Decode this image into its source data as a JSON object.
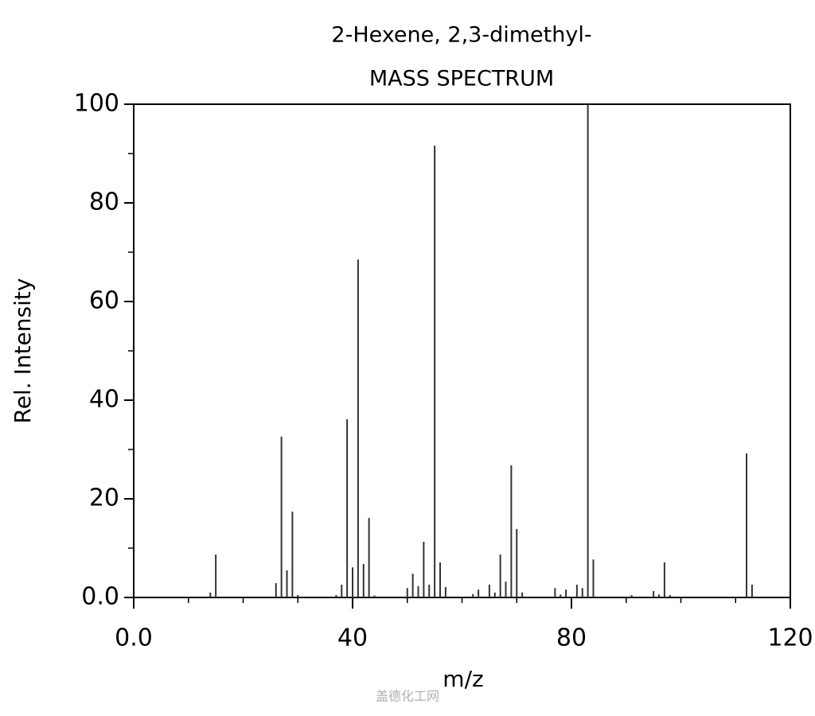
{
  "chart_data": {
    "type": "stem",
    "title": "2-Hexene, 2,3-dimethyl-",
    "subtitle": "MASS SPECTRUM",
    "x_label": "m/z",
    "y_label": "Rel. Intensity",
    "watermark": "盖德化工网",
    "color": "#333333",
    "x": [
      14,
      15,
      26,
      27,
      28,
      29,
      30,
      37,
      38,
      39,
      40,
      41,
      42,
      43,
      44,
      50,
      51,
      52,
      53,
      54,
      55,
      56,
      57,
      62,
      63,
      65,
      66,
      67,
      68,
      69,
      70,
      71,
      77,
      78,
      79,
      81,
      82,
      83,
      84,
      91,
      95,
      96,
      97,
      98,
      112,
      113
    ],
    "values": [
      1,
      8.7,
      2.9,
      32.6,
      5.5,
      17.4,
      0.5,
      0.5,
      2.6,
      36.1,
      6.1,
      68.5,
      6.8,
      16.1,
      0.4,
      1.9,
      4.8,
      2.3,
      11.3,
      2.6,
      91.6,
      7.1,
      2.1,
      0.7,
      1.6,
      2.6,
      1,
      8.7,
      3.2,
      26.8,
      13.9,
      1,
      1.9,
      0.6,
      1.6,
      2.6,
      1.9,
      100,
      7.7,
      0.5,
      1.3,
      0.6,
      7.1,
      0.5,
      29.2,
      2.6
    ],
    "xlim": [
      0,
      120
    ],
    "ylim": [
      0,
      100
    ],
    "xticks": [
      {
        "value": 0,
        "label": "0.0"
      },
      40,
      80,
      120
    ],
    "yticks": [
      {
        "value": 0,
        "label": "0.0"
      },
      20,
      40,
      60,
      80,
      100
    ],
    "x_minor_ticks": [
      10,
      20,
      30,
      50,
      60,
      70,
      90,
      100,
      110
    ],
    "y_minor_ticks": [
      10,
      30,
      50,
      70,
      90
    ]
  }
}
